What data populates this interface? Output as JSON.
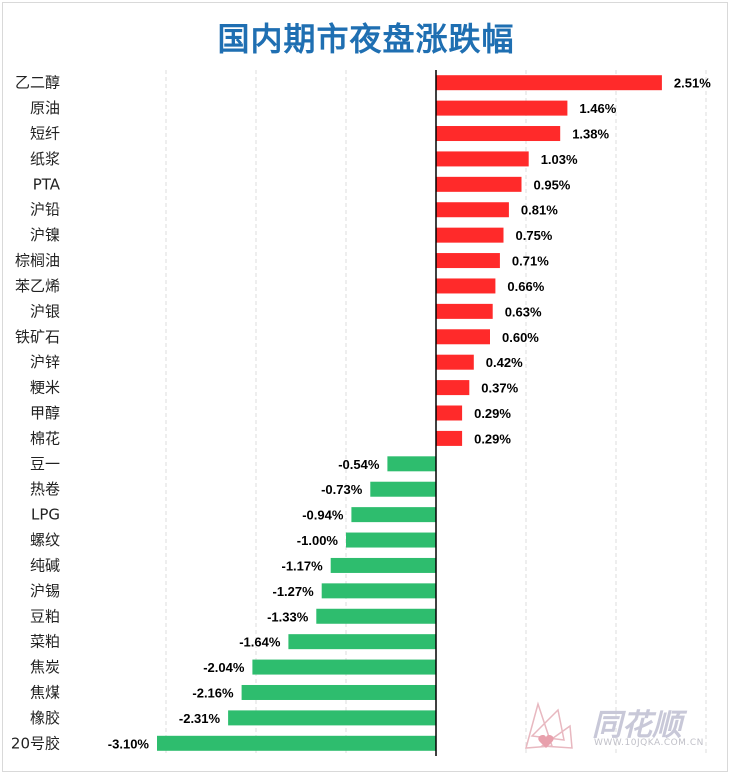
{
  "chart_data": {
    "type": "bar",
    "orientation": "horizontal",
    "title": "国内期市夜盘涨跌幅",
    "xlabel": "",
    "ylabel": "",
    "xlim": [
      -3.1,
      3.1
    ],
    "grid": true,
    "categories": [
      "乙二醇",
      "原油",
      "短纤",
      "纸浆",
      "PTA",
      "沪铅",
      "沪镍",
      "棕榈油",
      "苯乙烯",
      "沪银",
      "铁矿石",
      "沪锌",
      "粳米",
      "甲醇",
      "棉花",
      "豆一",
      "热卷",
      "LPG",
      "螺纹",
      "纯碱",
      "沪锡",
      "豆粕",
      "菜粕",
      "焦炭",
      "焦煤",
      "橡胶",
      "20号胶"
    ],
    "values": [
      2.51,
      1.46,
      1.38,
      1.03,
      0.95,
      0.81,
      0.75,
      0.71,
      0.66,
      0.63,
      0.6,
      0.42,
      0.37,
      0.29,
      0.29,
      -0.54,
      -0.73,
      -0.94,
      -1.0,
      -1.17,
      -1.27,
      -1.33,
      -1.64,
      -2.04,
      -2.16,
      -2.31,
      -3.1
    ],
    "labels": [
      "2.51%",
      "1.46%",
      "1.38%",
      "1.03%",
      "0.95%",
      "0.81%",
      "0.75%",
      "0.71%",
      "0.66%",
      "0.63%",
      "0.60%",
      "0.42%",
      "0.37%",
      "0.29%",
      "0.29%",
      "-0.54%",
      "-0.73%",
      "-0.94%",
      "-1.00%",
      "-1.17%",
      "-1.27%",
      "-1.33%",
      "-1.64%",
      "-2.04%",
      "-2.16%",
      "-2.31%",
      "-3.10%"
    ],
    "colors": {
      "positive": "#ff2a2a",
      "negative": "#2ebd6e",
      "title": "#1f6fb2"
    }
  },
  "watermark": {
    "brand": "同花顺",
    "url": "WWW.10JQKA.COM.CN"
  }
}
